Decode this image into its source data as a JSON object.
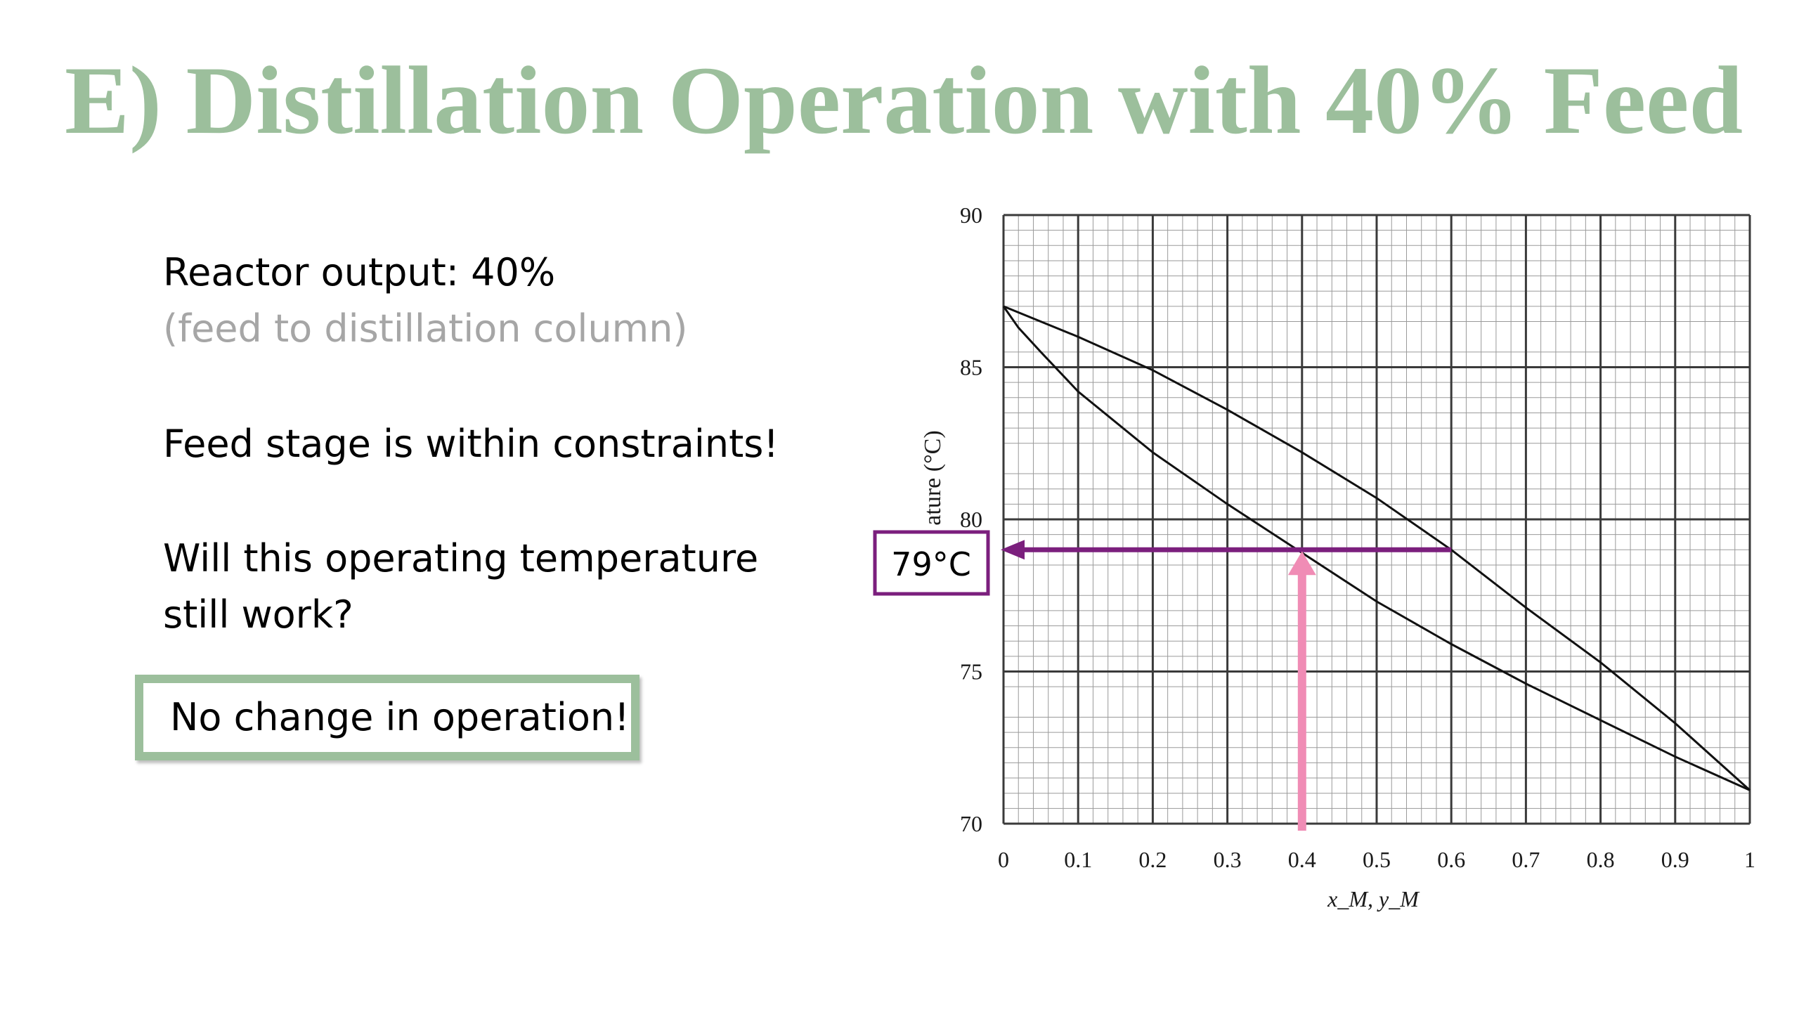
{
  "slide": {
    "title": "E) Distillation Operation with 40% Feed",
    "title_color": "#9cbf9c",
    "line1": "Reactor output: 40%",
    "line2": "(feed to distillation column)",
    "line3": "Feed stage is within constraints!",
    "line4a": "Will this operating temperature",
    "line4b": "still work?",
    "answer": "No change in operation!",
    "answer_border_color": "#9cbf9c"
  },
  "chart_data": {
    "type": "line",
    "xlabel": "x_M, y_M",
    "ylabel": "ature (°C)",
    "xlim": [
      0,
      1
    ],
    "ylim": [
      70,
      90
    ],
    "x_ticks": [
      "0",
      "0.1",
      "0.2",
      "0.3",
      "0.4",
      "0.5",
      "0.6",
      "0.7",
      "0.8",
      "0.9",
      "1"
    ],
    "y_ticks": [
      "70",
      "75",
      "80",
      "85",
      "90"
    ],
    "grid": true,
    "series": [
      {
        "x": [
          0,
          0.02,
          0.05,
          0.1,
          0.2,
          0.3,
          0.4,
          0.5,
          0.6,
          0.7,
          0.8,
          0.9,
          1.0
        ],
        "y": [
          87.0,
          86.3,
          85.5,
          84.2,
          82.2,
          80.5,
          78.9,
          77.3,
          75.9,
          74.6,
          73.4,
          72.2,
          71.1
        ]
      },
      {
        "x": [
          0,
          0.1,
          0.2,
          0.3,
          0.4,
          0.5,
          0.6,
          0.7,
          0.8,
          0.9,
          1.0
        ],
        "y": [
          87.0,
          86.0,
          84.9,
          83.6,
          82.2,
          80.7,
          79.0,
          77.1,
          75.3,
          73.3,
          71.1
        ]
      }
    ],
    "annotations": {
      "callout_label": "79°C",
      "feed_x": 0.4,
      "vapor_x": 0.6,
      "temperature": 79.0,
      "horizontal_arrow_color": "#7b1f7d",
      "vertical_arrow_color": "#f08cb5",
      "callout_border_color": "#7b1f7d"
    }
  }
}
